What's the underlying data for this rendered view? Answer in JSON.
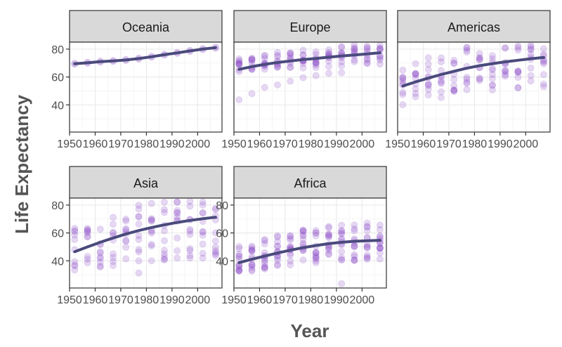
{
  "chart_data": {
    "type": "scatter",
    "xlabel": "Year",
    "ylabel": "Life Expectancy",
    "x_ticks": [
      1950,
      1960,
      1970,
      1980,
      1990,
      2000
    ],
    "x_tick_labels": [
      "1950",
      "1960",
      "1970",
      "1980",
      "1990",
      "2000"
    ],
    "y_ticks": [
      40,
      60,
      80
    ],
    "y_tick_labels": [
      "40",
      "60",
      "80"
    ],
    "xlim": [
      1950,
      2009.5
    ],
    "ylim": [
      20.5,
      85
    ],
    "years": [
      1952,
      1957,
      1962,
      1967,
      1972,
      1977,
      1982,
      1987,
      1992,
      1997,
      2002,
      2007
    ],
    "grid": true,
    "legend": "none",
    "colors": {
      "points": "#8b4fc9",
      "smooth": "#4a4a7c",
      "strip_fill": "#d9d9d9",
      "panel_border": "#333333",
      "grid": "#ebebeb"
    },
    "facets": [
      {
        "name": "Oceania",
        "row": 0,
        "col": 0,
        "y_range": [
          69,
          70
        ],
        "smooth": [
          69.5,
          70.2,
          71.0,
          71.5,
          72.2,
          73.2,
          74.5,
          76.0,
          77.3,
          78.7,
          80.0,
          81.0
        ],
        "show_y_axis": true
      },
      {
        "name": "Europe",
        "row": 0,
        "col": 1,
        "y_range": [
          62,
          73
        ],
        "smooth": [
          65.5,
          67.4,
          69.1,
          70.4,
          71.5,
          72.5,
          73.3,
          74.2,
          75.0,
          75.8,
          76.6,
          77.4
        ],
        "outliers": [
          [
            1952,
            43.6
          ],
          [
            1957,
            48.1
          ],
          [
            1962,
            52.5
          ],
          [
            1967,
            54.3
          ],
          [
            1972,
            57.0
          ],
          [
            1977,
            59.5
          ],
          [
            1982,
            61.0
          ],
          [
            1987,
            62.6
          ],
          [
            1992,
            63.0
          ]
        ],
        "show_y_axis": false
      },
      {
        "name": "Americas",
        "row": 0,
        "col": 2,
        "y_range": [
          40,
          69
        ],
        "smooth": [
          53.5,
          56.5,
          59.2,
          61.8,
          64.1,
          66.3,
          68.1,
          69.6,
          70.9,
          72.0,
          73.1,
          74.0
        ],
        "show_y_axis": false
      },
      {
        "name": "Asia",
        "row": 1,
        "col": 0,
        "y_range": [
          29,
          65
        ],
        "smooth": [
          46.5,
          50.0,
          53.3,
          56.4,
          59.2,
          61.7,
          63.9,
          65.8,
          67.5,
          69.0,
          70.2,
          71.3
        ],
        "outliers": [
          [
            1977,
            31.2
          ],
          [
            1982,
            40.0
          ],
          [
            1987,
            41.0
          ],
          [
            1992,
            42.0
          ],
          [
            1997,
            42.0
          ],
          [
            2002,
            42.0
          ],
          [
            2007,
            43.8
          ]
        ],
        "show_y_axis": true
      },
      {
        "name": "Africa",
        "row": 1,
        "col": 1,
        "y_range": [
          31,
          52
        ],
        "smooth": [
          38.7,
          41.1,
          43.4,
          45.6,
          47.6,
          49.4,
          51.0,
          52.3,
          53.3,
          54.0,
          54.4,
          54.7
        ],
        "outliers": [
          [
            1992,
            23.6
          ]
        ],
        "show_y_axis": true
      }
    ]
  }
}
